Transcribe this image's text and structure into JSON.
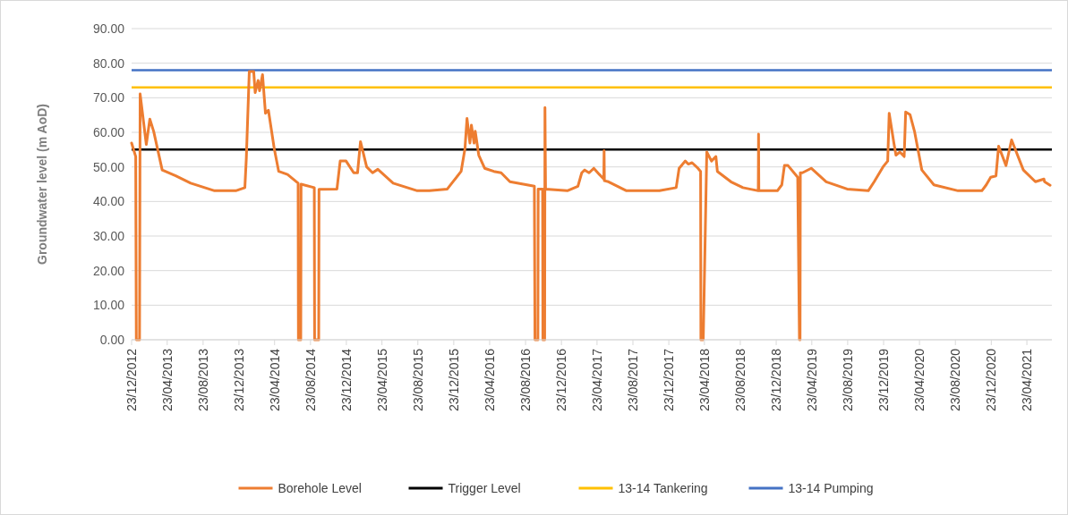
{
  "chart_data": {
    "type": "line",
    "ylabel": "Groundwater level (m AoD)",
    "xlim": [
      "2012-12-23",
      "2021-07-17"
    ],
    "xticks": [
      {
        "value": "2012-12-23",
        "label": "23/12/2012"
      },
      {
        "value": "2013-04-23",
        "label": "23/04/2013"
      },
      {
        "value": "2013-08-23",
        "label": "23/08/2013"
      },
      {
        "value": "2013-12-23",
        "label": "23/12/2013"
      },
      {
        "value": "2014-04-23",
        "label": "23/04/2014"
      },
      {
        "value": "2014-08-23",
        "label": "23/08/2014"
      },
      {
        "value": "2014-12-23",
        "label": "23/12/2014"
      },
      {
        "value": "2015-04-23",
        "label": "23/04/2015"
      },
      {
        "value": "2015-08-23",
        "label": "23/08/2015"
      },
      {
        "value": "2015-12-23",
        "label": "23/12/2015"
      },
      {
        "value": "2016-04-23",
        "label": "23/04/2016"
      },
      {
        "value": "2016-08-23",
        "label": "23/08/2016"
      },
      {
        "value": "2016-12-23",
        "label": "23/12/2016"
      },
      {
        "value": "2017-04-23",
        "label": "23/04/2017"
      },
      {
        "value": "2017-08-23",
        "label": "23/08/2017"
      },
      {
        "value": "2017-12-23",
        "label": "23/12/2017"
      },
      {
        "value": "2018-04-23",
        "label": "23/04/2018"
      },
      {
        "value": "2018-08-23",
        "label": "23/08/2018"
      },
      {
        "value": "2018-12-23",
        "label": "23/12/2018"
      },
      {
        "value": "2019-04-23",
        "label": "23/04/2019"
      },
      {
        "value": "2019-08-23",
        "label": "23/08/2019"
      },
      {
        "value": "2019-12-23",
        "label": "23/12/2019"
      },
      {
        "value": "2020-04-23",
        "label": "23/04/2020"
      },
      {
        "value": "2020-08-23",
        "label": "23/08/2020"
      },
      {
        "value": "2020-12-23",
        "label": "23/12/2020"
      },
      {
        "value": "2021-04-23",
        "label": "23/04/2021"
      }
    ],
    "ylim": [
      0,
      90
    ],
    "yticks": [
      {
        "value": 0,
        "label": "0.00"
      },
      {
        "value": 10,
        "label": "10.00"
      },
      {
        "value": 20,
        "label": "20.00"
      },
      {
        "value": 30,
        "label": "30.00"
      },
      {
        "value": 40,
        "label": "40.00"
      },
      {
        "value": 50,
        "label": "50.00"
      },
      {
        "value": 60,
        "label": "60.00"
      },
      {
        "value": 70,
        "label": "70.00"
      },
      {
        "value": 80,
        "label": "80.00"
      },
      {
        "value": 90,
        "label": "90.00"
      }
    ],
    "grid": "y",
    "legend": "bottom",
    "line_style": "solid",
    "series": [
      {
        "name": "Borehole Level",
        "color": "#ed7d31",
        "x": [
          "2012-12-23",
          "2013-01-06",
          "2013-01-08",
          "2013-01-19",
          "2013-01-21",
          "2013-02-11",
          "2013-02-23",
          "2013-03-08",
          "2013-04-06",
          "2013-05-22",
          "2013-07-12",
          "2013-10-01",
          "2013-12-12",
          "2014-01-12",
          "2014-01-17",
          "2014-01-27",
          "2014-02-11",
          "2014-02-16",
          "2014-02-26",
          "2014-03-03",
          "2014-03-13",
          "2014-03-23",
          "2014-04-02",
          "2014-04-22",
          "2014-05-07",
          "2014-06-06",
          "2014-07-12",
          "2014-07-13",
          "2014-07-21",
          "2014-07-22",
          "2014-09-05",
          "2014-09-06",
          "2014-09-20",
          "2014-09-21",
          "2014-11-21",
          "2014-12-02",
          "2014-12-22",
          "2015-01-17",
          "2015-01-30",
          "2015-02-09",
          "2015-03-02",
          "2015-03-22",
          "2015-04-09",
          "2015-05-31",
          "2015-08-21",
          "2015-10-01",
          "2015-12-01",
          "2016-01-17",
          "2016-01-30",
          "2016-02-06",
          "2016-02-16",
          "2016-02-21",
          "2016-03-01",
          "2016-03-05",
          "2016-03-17",
          "2016-04-06",
          "2016-05-07",
          "2016-06-01",
          "2016-07-01",
          "2016-09-22",
          "2016-09-24",
          "2016-10-04",
          "2016-10-05",
          "2016-10-20",
          "2016-10-21",
          "2016-10-27",
          "2016-10-28",
          "2016-10-30",
          "2017-01-12",
          "2017-02-17",
          "2017-03-02",
          "2017-03-12",
          "2017-03-27",
          "2017-04-12",
          "2017-05-01",
          "2017-05-16",
          "2017-05-17",
          "2017-05-18",
          "2017-06-01",
          "2017-08-01",
          "2017-11-21",
          "2018-01-17",
          "2018-01-27",
          "2018-02-17",
          "2018-02-27",
          "2018-03-12",
          "2018-04-01",
          "2018-04-10",
          "2018-04-11",
          "2018-04-19",
          "2018-05-01",
          "2018-05-17",
          "2018-06-01",
          "2018-06-06",
          "2018-07-22",
          "2018-09-01",
          "2018-10-23",
          "2018-10-24",
          "2018-10-25",
          "2018-12-27",
          "2019-01-11",
          "2019-01-20",
          "2019-02-01",
          "2019-03-06",
          "2019-03-12",
          "2019-03-14",
          "2019-03-15",
          "2019-03-22",
          "2019-04-21",
          "2019-06-11",
          "2019-08-21",
          "2019-11-01",
          "2019-11-21",
          "2019-12-21",
          "2020-01-06",
          "2020-01-11",
          "2020-01-27",
          "2020-02-03",
          "2020-02-16",
          "2020-03-02",
          "2020-03-07",
          "2020-03-22",
          "2020-04-06",
          "2020-05-01",
          "2020-06-11",
          "2020-09-01",
          "2020-11-21",
          "2020-12-06",
          "2020-12-21",
          "2021-01-08",
          "2021-01-17",
          "2021-02-11",
          "2021-03-02",
          "2021-04-11",
          "2021-05-22",
          "2021-06-20",
          "2021-06-22",
          "2021-07-11"
        ],
        "values": [
          56.9,
          53.0,
          0,
          0,
          71.1,
          56.5,
          63.8,
          60.3,
          49.1,
          47.4,
          45.3,
          43.1,
          43.1,
          44.0,
          52.6,
          77.6,
          77.6,
          71.5,
          75.0,
          72.0,
          76.7,
          65.5,
          66.4,
          55.2,
          48.7,
          47.8,
          45.3,
          0,
          0,
          45.0,
          44.0,
          0,
          0,
          43.5,
          43.6,
          51.7,
          51.7,
          48.3,
          48.3,
          57.3,
          50.0,
          48.3,
          49.3,
          45.3,
          43.1,
          43.1,
          43.6,
          48.7,
          55.2,
          64.0,
          56.9,
          62.1,
          56.9,
          60.3,
          53.4,
          49.6,
          48.7,
          48.3,
          45.7,
          44.4,
          0,
          0,
          43.6,
          43.6,
          0,
          0,
          67.2,
          43.6,
          43.1,
          44.4,
          48.3,
          49.1,
          48.3,
          49.6,
          47.8,
          46.5,
          54.7,
          46.0,
          45.7,
          43.1,
          43.1,
          44.0,
          49.6,
          51.7,
          50.8,
          51.2,
          49.6,
          48.7,
          0,
          0,
          54.3,
          51.7,
          53.0,
          48.7,
          45.7,
          44.0,
          43.1,
          59.5,
          43.1,
          43.1,
          44.8,
          50.4,
          50.4,
          47.0,
          0,
          0,
          48.3,
          48.3,
          49.6,
          45.7,
          43.6,
          43.1,
          45.7,
          50.0,
          51.7,
          65.5,
          56.9,
          53.4,
          54.3,
          53.0,
          65.9,
          65.1,
          60.3,
          49.1,
          44.8,
          43.1,
          43.1,
          44.8,
          47.0,
          47.4,
          56.0,
          50.4,
          57.8,
          49.1,
          45.7,
          46.5,
          45.7,
          44.7
        ]
      }
    ],
    "ref_lines": [
      {
        "axis": "y",
        "value": 55,
        "label": "Trigger Level",
        "color": "#000000"
      },
      {
        "axis": "y",
        "value": 73,
        "label": "13-14 Tankering",
        "color": "#ffc000"
      },
      {
        "axis": "y",
        "value": 78,
        "label": "13-14 Pumping",
        "color": "#4472c4"
      }
    ]
  }
}
